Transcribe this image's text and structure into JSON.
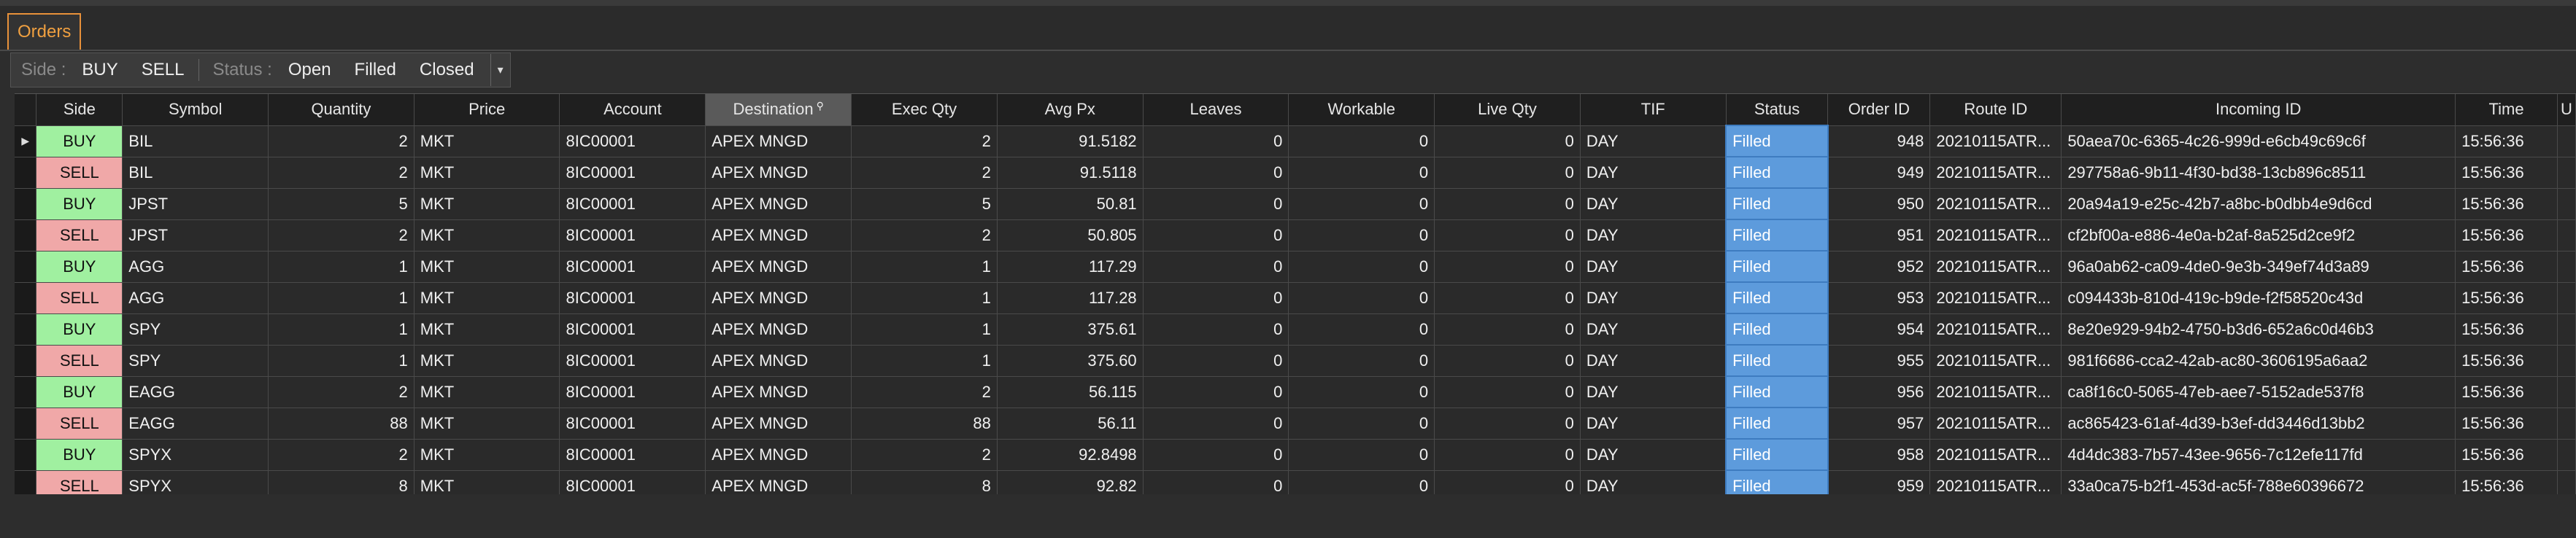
{
  "tabs": [
    {
      "label": "Orders"
    }
  ],
  "toolbar": {
    "side_label": "Side :",
    "buy_label": "BUY",
    "sell_label": "SELL",
    "status_label": "Status :",
    "open_label": "Open",
    "filled_label": "Filled",
    "closed_label": "Closed"
  },
  "columns": [
    "Side",
    "Symbol",
    "Quantity",
    "Price",
    "Account",
    "Destination",
    "Exec Qty",
    "Avg Px",
    "Leaves",
    "Workable",
    "Live Qty",
    "TIF",
    "Status",
    "Order ID",
    "Route ID",
    "Incoming ID",
    "Time",
    "U"
  ],
  "rows": [
    {
      "side": "BUY",
      "symbol": "BIL",
      "quantity": "2",
      "price": "MKT",
      "account": "8IC00001",
      "destination": "APEX MNGD",
      "exec_qty": "2",
      "avg_px": "91.5182",
      "leaves": "0",
      "workable": "0",
      "live_qty": "0",
      "tif": "DAY",
      "status": "Filled",
      "order_id": "948",
      "route_id": "20210115ATR...",
      "incoming_id": "50aea70c-6365-4c26-999d-e6cb49c69c6f",
      "time": "15:56:36"
    },
    {
      "side": "SELL",
      "symbol": "BIL",
      "quantity": "2",
      "price": "MKT",
      "account": "8IC00001",
      "destination": "APEX MNGD",
      "exec_qty": "2",
      "avg_px": "91.5118",
      "leaves": "0",
      "workable": "0",
      "live_qty": "0",
      "tif": "DAY",
      "status": "Filled",
      "order_id": "949",
      "route_id": "20210115ATR...",
      "incoming_id": "297758a6-9b11-4f30-bd38-13cb896c8511",
      "time": "15:56:36"
    },
    {
      "side": "BUY",
      "symbol": "JPST",
      "quantity": "5",
      "price": "MKT",
      "account": "8IC00001",
      "destination": "APEX MNGD",
      "exec_qty": "5",
      "avg_px": "50.81",
      "leaves": "0",
      "workable": "0",
      "live_qty": "0",
      "tif": "DAY",
      "status": "Filled",
      "order_id": "950",
      "route_id": "20210115ATR...",
      "incoming_id": "20a94a19-e25c-42b7-a8bc-b0dbb4e9d6cd",
      "time": "15:56:36"
    },
    {
      "side": "SELL",
      "symbol": "JPST",
      "quantity": "2",
      "price": "MKT",
      "account": "8IC00001",
      "destination": "APEX MNGD",
      "exec_qty": "2",
      "avg_px": "50.805",
      "leaves": "0",
      "workable": "0",
      "live_qty": "0",
      "tif": "DAY",
      "status": "Filled",
      "order_id": "951",
      "route_id": "20210115ATR...",
      "incoming_id": "cf2bf00a-e886-4e0a-b2af-8a525d2ce9f2",
      "time": "15:56:36"
    },
    {
      "side": "BUY",
      "symbol": "AGG",
      "quantity": "1",
      "price": "MKT",
      "account": "8IC00001",
      "destination": "APEX MNGD",
      "exec_qty": "1",
      "avg_px": "117.29",
      "leaves": "0",
      "workable": "0",
      "live_qty": "0",
      "tif": "DAY",
      "status": "Filled",
      "order_id": "952",
      "route_id": "20210115ATR...",
      "incoming_id": "96a0ab62-ca09-4de0-9e3b-349ef74d3a89",
      "time": "15:56:36"
    },
    {
      "side": "SELL",
      "symbol": "AGG",
      "quantity": "1",
      "price": "MKT",
      "account": "8IC00001",
      "destination": "APEX MNGD",
      "exec_qty": "1",
      "avg_px": "117.28",
      "leaves": "0",
      "workable": "0",
      "live_qty": "0",
      "tif": "DAY",
      "status": "Filled",
      "order_id": "953",
      "route_id": "20210115ATR...",
      "incoming_id": "c094433b-810d-419c-b9de-f2f58520c43d",
      "time": "15:56:36"
    },
    {
      "side": "BUY",
      "symbol": "SPY",
      "quantity": "1",
      "price": "MKT",
      "account": "8IC00001",
      "destination": "APEX MNGD",
      "exec_qty": "1",
      "avg_px": "375.61",
      "leaves": "0",
      "workable": "0",
      "live_qty": "0",
      "tif": "DAY",
      "status": "Filled",
      "order_id": "954",
      "route_id": "20210115ATR...",
      "incoming_id": "8e20e929-94b2-4750-b3d6-652a6c0d46b3",
      "time": "15:56:36"
    },
    {
      "side": "SELL",
      "symbol": "SPY",
      "quantity": "1",
      "price": "MKT",
      "account": "8IC00001",
      "destination": "APEX MNGD",
      "exec_qty": "1",
      "avg_px": "375.60",
      "leaves": "0",
      "workable": "0",
      "live_qty": "0",
      "tif": "DAY",
      "status": "Filled",
      "order_id": "955",
      "route_id": "20210115ATR...",
      "incoming_id": "981f6686-cca2-42ab-ac80-3606195a6aa2",
      "time": "15:56:36"
    },
    {
      "side": "BUY",
      "symbol": "EAGG",
      "quantity": "2",
      "price": "MKT",
      "account": "8IC00001",
      "destination": "APEX MNGD",
      "exec_qty": "2",
      "avg_px": "56.115",
      "leaves": "0",
      "workable": "0",
      "live_qty": "0",
      "tif": "DAY",
      "status": "Filled",
      "order_id": "956",
      "route_id": "20210115ATR...",
      "incoming_id": "ca8f16c0-5065-47eb-aee7-5152ade537f8",
      "time": "15:56:36"
    },
    {
      "side": "SELL",
      "symbol": "EAGG",
      "quantity": "88",
      "price": "MKT",
      "account": "8IC00001",
      "destination": "APEX MNGD",
      "exec_qty": "88",
      "avg_px": "56.11",
      "leaves": "0",
      "workable": "0",
      "live_qty": "0",
      "tif": "DAY",
      "status": "Filled",
      "order_id": "957",
      "route_id": "20210115ATR...",
      "incoming_id": "ac865423-61af-4d39-b3ef-dd3446d13bb2",
      "time": "15:56:36"
    },
    {
      "side": "BUY",
      "symbol": "SPYX",
      "quantity": "2",
      "price": "MKT",
      "account": "8IC00001",
      "destination": "APEX MNGD",
      "exec_qty": "2",
      "avg_px": "92.8498",
      "leaves": "0",
      "workable": "0",
      "live_qty": "0",
      "tif": "DAY",
      "status": "Filled",
      "order_id": "958",
      "route_id": "20210115ATR...",
      "incoming_id": "4d4dc383-7b57-43ee-9656-7c12efe117fd",
      "time": "15:56:36"
    },
    {
      "side": "SELL",
      "symbol": "SPYX",
      "quantity": "8",
      "price": "MKT",
      "account": "8IC00001",
      "destination": "APEX MNGD",
      "exec_qty": "8",
      "avg_px": "92.82",
      "leaves": "0",
      "workable": "0",
      "live_qty": "0",
      "tif": "DAY",
      "status": "Filled",
      "order_id": "959",
      "route_id": "20210115ATR...",
      "incoming_id": "33a0ca75-b2f1-453d-ac5f-788e60396672",
      "time": "15:56:36"
    }
  ],
  "colors": {
    "buy": "#a0f0a0",
    "sell": "#f0a8a8",
    "filled": "#5d9bdc",
    "tab_accent": "#e8913a"
  },
  "icons": {
    "row_indicator": "triangle-right-icon",
    "filter": "filter-icon",
    "dropdown": "chevron-down-icon"
  }
}
